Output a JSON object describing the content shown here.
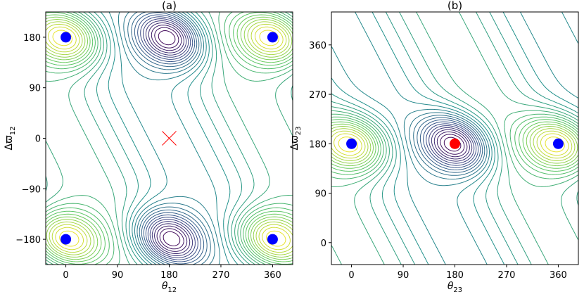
{
  "chart_data": [
    {
      "type": "contour",
      "title": "(a)",
      "xlabel": "θ",
      "xlabel_sub": "12",
      "ylabel": "Δϖ",
      "ylabel_sub": "12",
      "xlim": [
        -35,
        395
      ],
      "ylim": [
        -225,
        225
      ],
      "x_ticks": [
        0,
        90,
        180,
        270,
        360
      ],
      "x_ticklabels": [
        "0",
        "90",
        "180",
        "270",
        "360"
      ],
      "y_ticks": [
        -180,
        -90,
        0,
        90,
        180
      ],
      "y_ticklabels": [
        "−180",
        "−90",
        "0",
        "90",
        "180"
      ],
      "grid": false,
      "colormap": [
        "#440154",
        "#3b528b",
        "#21918c",
        "#5ec962",
        "#fde725"
      ],
      "markers": [
        {
          "name": "fixed-point",
          "shape": "circle",
          "color": "#0000ff",
          "x": 0,
          "y": 180
        },
        {
          "name": "fixed-point",
          "shape": "circle",
          "color": "#0000ff",
          "x": 360,
          "y": 180
        },
        {
          "name": "fixed-point",
          "shape": "circle",
          "color": "#0000ff",
          "x": 0,
          "y": -180
        },
        {
          "name": "fixed-point",
          "shape": "circle",
          "color": "#0000ff",
          "x": 360,
          "y": -180
        },
        {
          "name": "saddle-point",
          "shape": "x",
          "color": "#ff0000",
          "x": 180,
          "y": 0
        }
      ],
      "minima": [
        [
          180,
          180
        ],
        [
          180,
          -180
        ]
      ],
      "maxima": [
        [
          0,
          180
        ],
        [
          360,
          180
        ],
        [
          0,
          -180
        ],
        [
          360,
          -180
        ]
      ]
    },
    {
      "type": "contour",
      "title": "(b)",
      "xlabel": "θ",
      "xlabel_sub": "23",
      "ylabel": "Δϖ",
      "ylabel_sub": "23",
      "xlim": [
        -35,
        395
      ],
      "ylim": [
        -40,
        420
      ],
      "x_ticks": [
        0,
        90,
        180,
        270,
        360
      ],
      "x_ticklabels": [
        "0",
        "90",
        "180",
        "270",
        "360"
      ],
      "y_ticks": [
        0,
        90,
        180,
        270,
        360
      ],
      "y_ticklabels": [
        "0",
        "90",
        "180",
        "270",
        "360"
      ],
      "grid": false,
      "colormap": [
        "#440154",
        "#3b528b",
        "#21918c",
        "#5ec962",
        "#fde725"
      ],
      "markers": [
        {
          "name": "fixed-point",
          "shape": "circle",
          "color": "#0000ff",
          "x": 0,
          "y": 180
        },
        {
          "name": "fixed-point",
          "shape": "circle",
          "color": "#ff0000",
          "x": 180,
          "y": 180
        },
        {
          "name": "fixed-point",
          "shape": "circle",
          "color": "#0000ff",
          "x": 360,
          "y": 180
        }
      ],
      "minima": [
        [
          180,
          180
        ]
      ],
      "maxima": [
        [
          0,
          180
        ],
        [
          360,
          180
        ]
      ]
    }
  ]
}
